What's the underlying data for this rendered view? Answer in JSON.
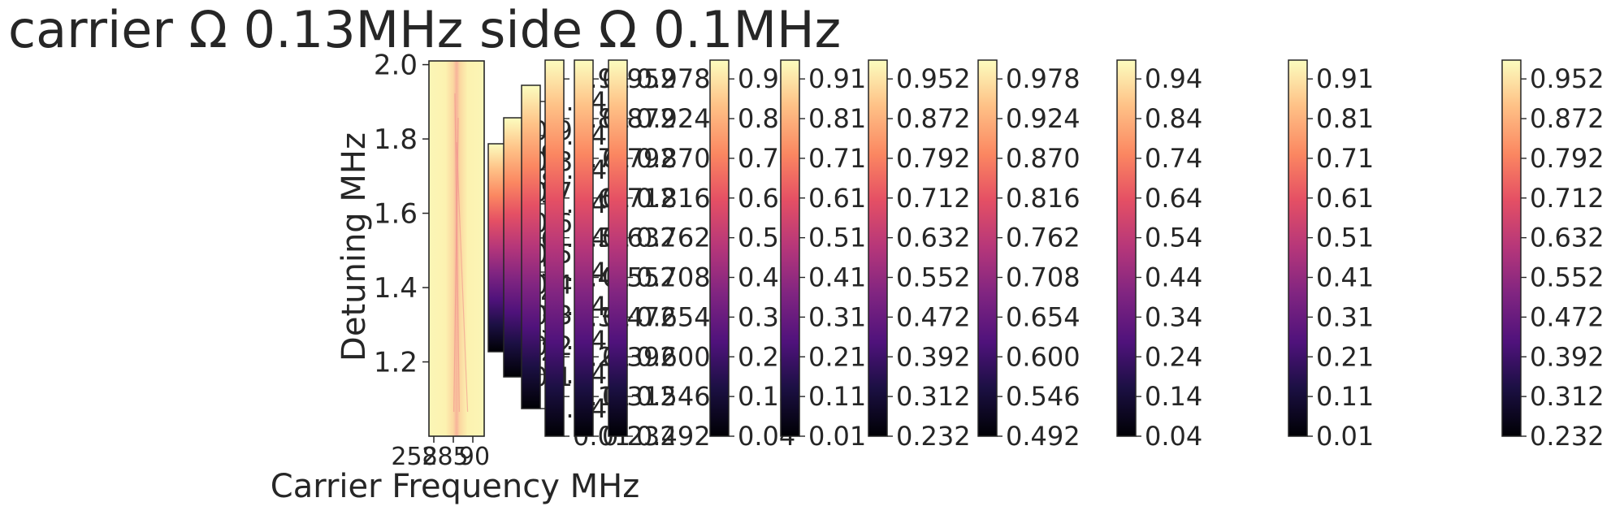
{
  "chart_data": {
    "type": "heatmap",
    "title": "carrier Ω 0.13MHz side Ω 0.1MHz",
    "xlabel": "Carrier Frequency MHz",
    "ylabel": "Detuning MHz",
    "colormap": "magma",
    "main_axis": {
      "xticks": [
        "258",
        "285",
        "90"
      ],
      "yticks": [
        1.2,
        1.4,
        1.6,
        1.8,
        2.0
      ],
      "ylim": [
        1.0,
        2.01
      ]
    },
    "heatmap_values_note": "",
    "colorbars": [
      {
        "ticks": [
          "0.9",
          "0.8",
          "0.7",
          "0.6",
          "0.5",
          "0.4",
          "0.3",
          "0.2"
        ]
      },
      {
        "ticks": [
          "0.9",
          "0.8",
          "0.7",
          "0.6",
          "0.5",
          "0.4",
          "0.3",
          "0.2",
          "0.1"
        ]
      },
      {
        "ticks": [
          "0.94",
          "0.84",
          "0.74",
          "0.64",
          "0.54",
          "0.44",
          "0.34",
          "0.24",
          "0.14",
          "0.04"
        ]
      },
      {
        "ticks": [
          "0.91",
          "0.81",
          "0.71",
          "0.61",
          "0.51",
          "0.41",
          "0.31",
          "0.21",
          "0.11",
          "0.01"
        ]
      },
      {
        "ticks": [
          "0.952",
          "0.872",
          "0.792",
          "0.712",
          "0.632",
          "0.552",
          "0.472",
          "0.392",
          "0.312",
          "0.232"
        ]
      },
      {
        "ticks": [
          "0.978",
          "0.924",
          "0.870",
          "0.816",
          "0.762",
          "0.708",
          "0.654",
          "0.600",
          "0.546",
          "0.492"
        ]
      },
      {
        "ticks": [
          "0.94",
          "0.84",
          "0.74",
          "0.64",
          "0.54",
          "0.44",
          "0.34",
          "0.24",
          "0.14",
          "0.04"
        ]
      },
      {
        "ticks": [
          "0.91",
          "0.81",
          "0.71",
          "0.61",
          "0.51",
          "0.41",
          "0.31",
          "0.21",
          "0.11",
          "0.01"
        ]
      },
      {
        "ticks": [
          "0.952",
          "0.872",
          "0.792",
          "0.712",
          "0.632",
          "0.552",
          "0.472",
          "0.392",
          "0.312",
          "0.232"
        ]
      },
      {
        "ticks": [
          "0.978",
          "0.924",
          "0.870",
          "0.816",
          "0.762",
          "0.708",
          "0.654",
          "0.600",
          "0.546",
          "0.492"
        ]
      },
      {
        "ticks": [
          "0.94",
          "0.84",
          "0.74",
          "0.64",
          "0.54",
          "0.44",
          "0.34",
          "0.24",
          "0.14",
          "0.04"
        ]
      },
      {
        "ticks": [
          "0.91",
          "0.81",
          "0.71",
          "0.61",
          "0.51",
          "0.41",
          "0.31",
          "0.21",
          "0.11",
          "0.01"
        ]
      },
      {
        "ticks": [
          "0.952",
          "0.872",
          "0.792",
          "0.712",
          "0.632",
          "0.552",
          "0.472",
          "0.392",
          "0.312",
          "0.232"
        ]
      },
      {
        "ticks": [
          "0.978",
          "0.924",
          "0.870",
          "0.816",
          "0.762",
          "0.708",
          "0.654",
          "0.600",
          "0.546",
          "0.492"
        ]
      }
    ]
  }
}
